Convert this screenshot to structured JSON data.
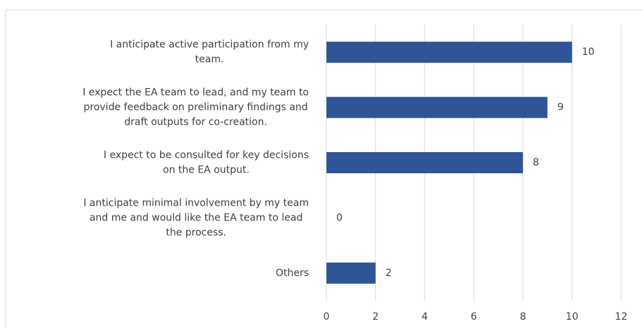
{
  "chart_data": {
    "type": "bar",
    "orientation": "horizontal",
    "categories": [
      "I anticipate active participation from my team.",
      "I expect the EA team to lead, and my team to provide feedback on preliminary findings and draft outputs for co-creation.",
      "I expect to be consulted for key decisions on the EA output.",
      "I anticipate minimal involvement by my team and me and would like the EA team to lead the process.",
      "Others"
    ],
    "values": [
      10,
      9,
      8,
      0,
      2
    ],
    "color": "#2f5597",
    "xlim": [
      0,
      12
    ],
    "xticks": [
      0,
      2,
      4,
      6,
      8,
      10,
      12
    ],
    "grid": true
  }
}
